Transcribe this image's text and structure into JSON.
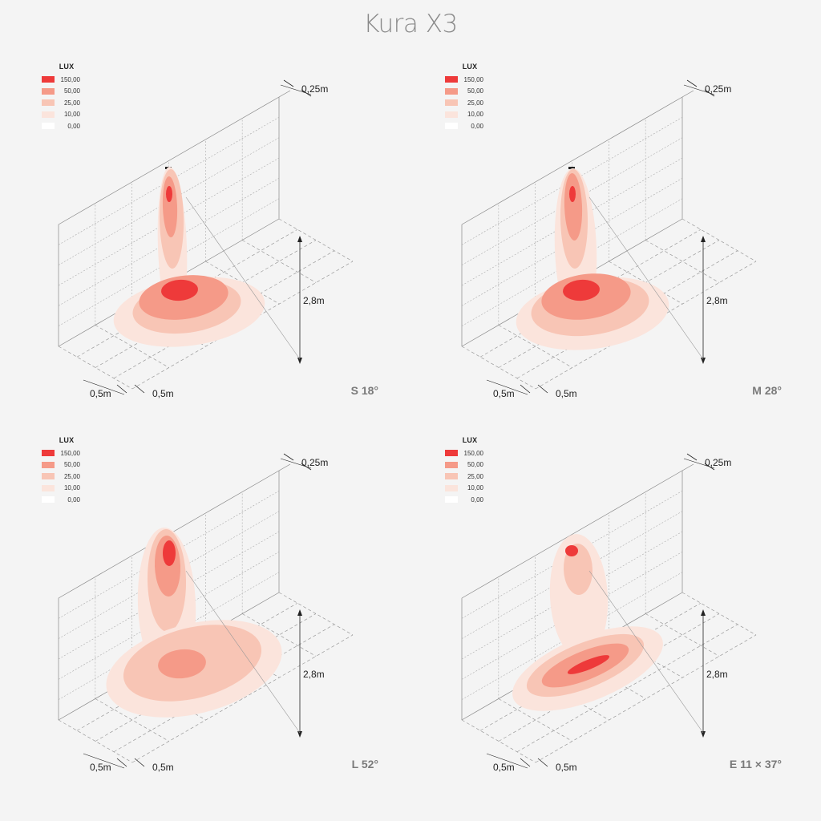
{
  "title": "Kura X3",
  "legend": {
    "header": "LUX",
    "levels": [
      {
        "value": "150,00",
        "color": "#ee3a3a"
      },
      {
        "value": "50,00",
        "color": "#f59a88"
      },
      {
        "value": "25,00",
        "color": "#f8c5b5"
      },
      {
        "value": "10,00",
        "color": "#fbe4dc"
      },
      {
        "value": "0,00",
        "color": "#ffffff"
      }
    ]
  },
  "dimensions": {
    "wall_offset": "0,25m",
    "height": "2,8m",
    "grid_x": "0,5m",
    "grid_y": "0,5m"
  },
  "panels": [
    {
      "label": "S 18°",
      "beam": "s"
    },
    {
      "label": "M 28°",
      "beam": "m"
    },
    {
      "label": "L 52°",
      "beam": "l"
    },
    {
      "label": "E 11 × 37°",
      "beam": "e"
    }
  ]
}
